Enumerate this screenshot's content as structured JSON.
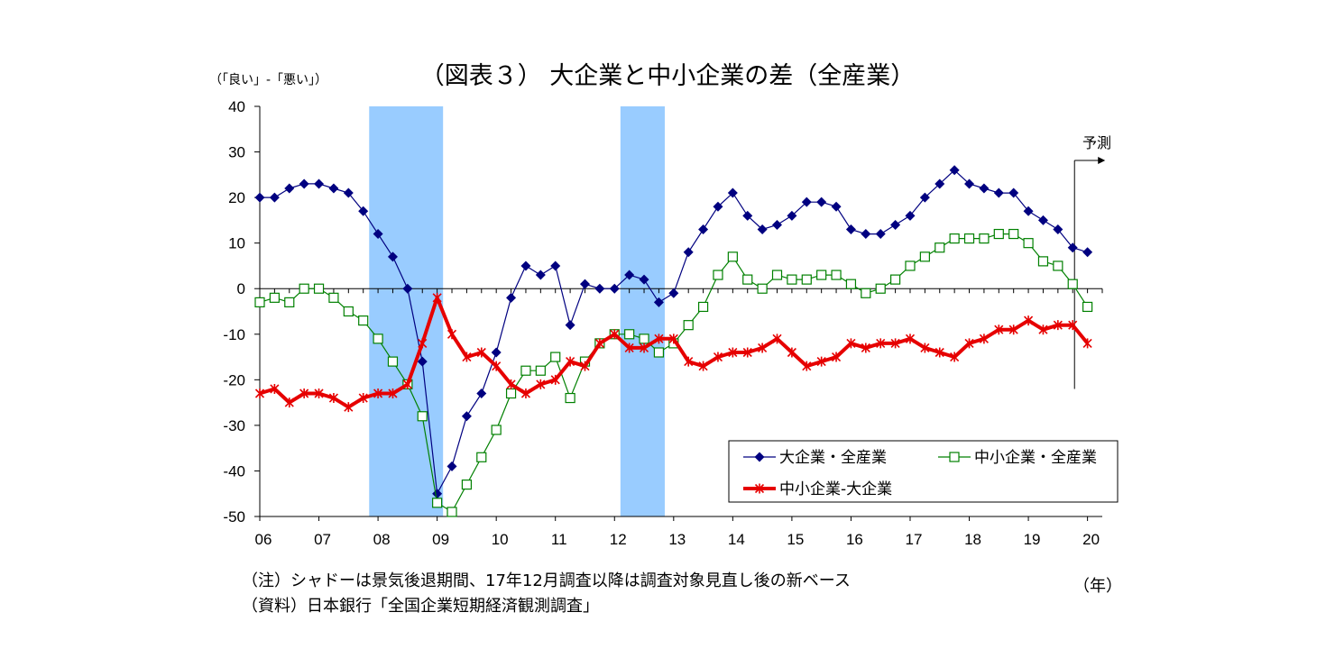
{
  "chart_data": {
    "type": "line",
    "title": "（図表３） 大企業と中小企業の差（全産業）",
    "ylabel": "（「良い」-「悪い」）",
    "xlabel": "（年）",
    "ylim": [
      -50,
      40
    ],
    "yticks": [
      40,
      30,
      20,
      10,
      0,
      -10,
      -20,
      -30,
      -40,
      -50
    ],
    "x_tick_labels": [
      "06",
      "07",
      "08",
      "09",
      "10",
      "11",
      "12",
      "13",
      "14",
      "15",
      "16",
      "17",
      "18",
      "19",
      "20"
    ],
    "x_start": 2006.0,
    "x_step": 0.25,
    "shaded_periods": [
      [
        2007.85,
        2009.1
      ],
      [
        2012.1,
        2012.85
      ]
    ],
    "forecast": {
      "label": "予測",
      "x": 2019.75
    },
    "legend_position": "bottom-right",
    "series": [
      {
        "name": "大企業・全産業",
        "color": "#000080",
        "marker": "diamond",
        "values": [
          20,
          20,
          22,
          23,
          23,
          22,
          21,
          17,
          12,
          7,
          0,
          -16,
          -45,
          -39,
          -28,
          -23,
          -14,
          -2,
          5,
          3,
          5,
          -8,
          1,
          0,
          0,
          3,
          2,
          -3,
          -1,
          8,
          13,
          18,
          21,
          16,
          13,
          14,
          16,
          19,
          19,
          18,
          13,
          12,
          12,
          14,
          16,
          20,
          23,
          26,
          23,
          22,
          21,
          21,
          17,
          15,
          13,
          9,
          8
        ]
      },
      {
        "name": "中小企業・全産業",
        "color": "#008000",
        "marker": "square-open",
        "values": [
          -3,
          -2,
          -3,
          0,
          0,
          -2,
          -5,
          -7,
          -11,
          -16,
          -21,
          -28,
          -47,
          -49,
          -43,
          -37,
          -31,
          -23,
          -18,
          -18,
          -15,
          -24,
          -16,
          -12,
          -10,
          -10,
          -11,
          -14,
          -12,
          -8,
          -4,
          3,
          7,
          2,
          0,
          3,
          2,
          2,
          3,
          3,
          1,
          -1,
          0,
          2,
          5,
          7,
          9,
          11,
          11,
          11,
          12,
          12,
          10,
          6,
          5,
          1,
          -4
        ]
      },
      {
        "name": "中小企業-大企業",
        "color": "#e60000",
        "marker": "asterisk",
        "values": [
          -23,
          -22,
          -25,
          -23,
          -23,
          -24,
          -26,
          -24,
          -23,
          -23,
          -21,
          -12,
          -2,
          -10,
          -15,
          -14,
          -17,
          -21,
          -23,
          -21,
          -20,
          -16,
          -17,
          -12,
          -10,
          -13,
          -13,
          -11,
          -11,
          -16,
          -17,
          -15,
          -14,
          -14,
          -13,
          -11,
          -14,
          -17,
          -16,
          -15,
          -12,
          -13,
          -12,
          -12,
          -11,
          -13,
          -14,
          -15,
          -12,
          -11,
          -9,
          -9,
          -7,
          -9,
          -8,
          -8,
          -12
        ]
      }
    ]
  },
  "notes": {
    "note_1": "（注）シャドーは景気後退期間、17年12月調査以降は調査対象見直し後の新ベース",
    "note_2": "（資料）日本銀行「全国企業短期経済観測調査」"
  }
}
